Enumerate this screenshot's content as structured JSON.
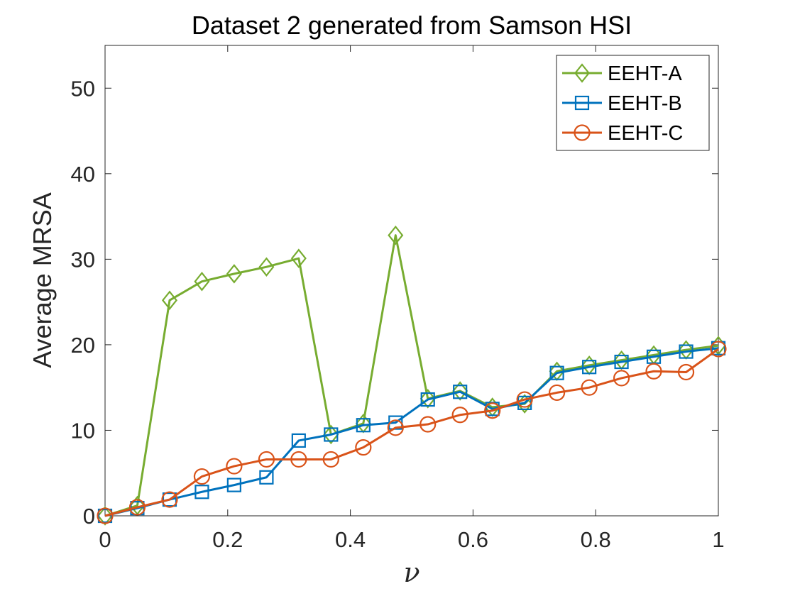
{
  "chart_data": {
    "type": "line",
    "title": "Dataset 2 generated from Samson HSI",
    "xlabel": "ν",
    "ylabel": "Average MRSA",
    "xlim": [
      0,
      1
    ],
    "ylim": [
      0,
      55
    ],
    "xticks": [
      0,
      0.2,
      0.4,
      0.6,
      0.8,
      1
    ],
    "xtick_labels": [
      "0",
      "0.2",
      "0.4",
      "0.6",
      "0.8",
      "1"
    ],
    "yticks": [
      0,
      10,
      20,
      30,
      40,
      50
    ],
    "ytick_labels": [
      "0",
      "10",
      "20",
      "30",
      "40",
      "50"
    ],
    "grid": false,
    "legend_position": "top-right",
    "x": [
      0,
      0.0526,
      0.1053,
      0.1579,
      0.2105,
      0.2632,
      0.3158,
      0.3684,
      0.4211,
      0.4737,
      0.5263,
      0.5789,
      0.6316,
      0.6842,
      0.7368,
      0.7895,
      0.8421,
      0.8947,
      0.9474,
      1.0
    ],
    "series": [
      {
        "name": "EEHT-A",
        "color": "#77ac30",
        "marker": "diamond",
        "values": [
          0,
          1.2,
          25.2,
          27.4,
          28.3,
          29.1,
          30.1,
          9.5,
          10.8,
          32.8,
          13.7,
          14.6,
          12.7,
          13.1,
          16.9,
          17.6,
          18.2,
          18.8,
          19.4,
          19.9
        ]
      },
      {
        "name": "EEHT-B",
        "color": "#0072bd",
        "marker": "square",
        "values": [
          0,
          0.9,
          1.9,
          2.8,
          3.6,
          4.5,
          8.8,
          9.5,
          10.6,
          10.9,
          13.6,
          14.5,
          12.5,
          13.2,
          16.7,
          17.4,
          18.0,
          18.6,
          19.2,
          19.6
        ]
      },
      {
        "name": "EEHT-C",
        "color": "#d95319",
        "marker": "circle",
        "values": [
          0,
          1.0,
          1.9,
          4.6,
          5.8,
          6.6,
          6.6,
          6.6,
          8.0,
          10.3,
          10.7,
          11.8,
          12.3,
          13.6,
          14.4,
          15.0,
          16.1,
          16.9,
          16.8,
          19.5
        ]
      }
    ]
  }
}
